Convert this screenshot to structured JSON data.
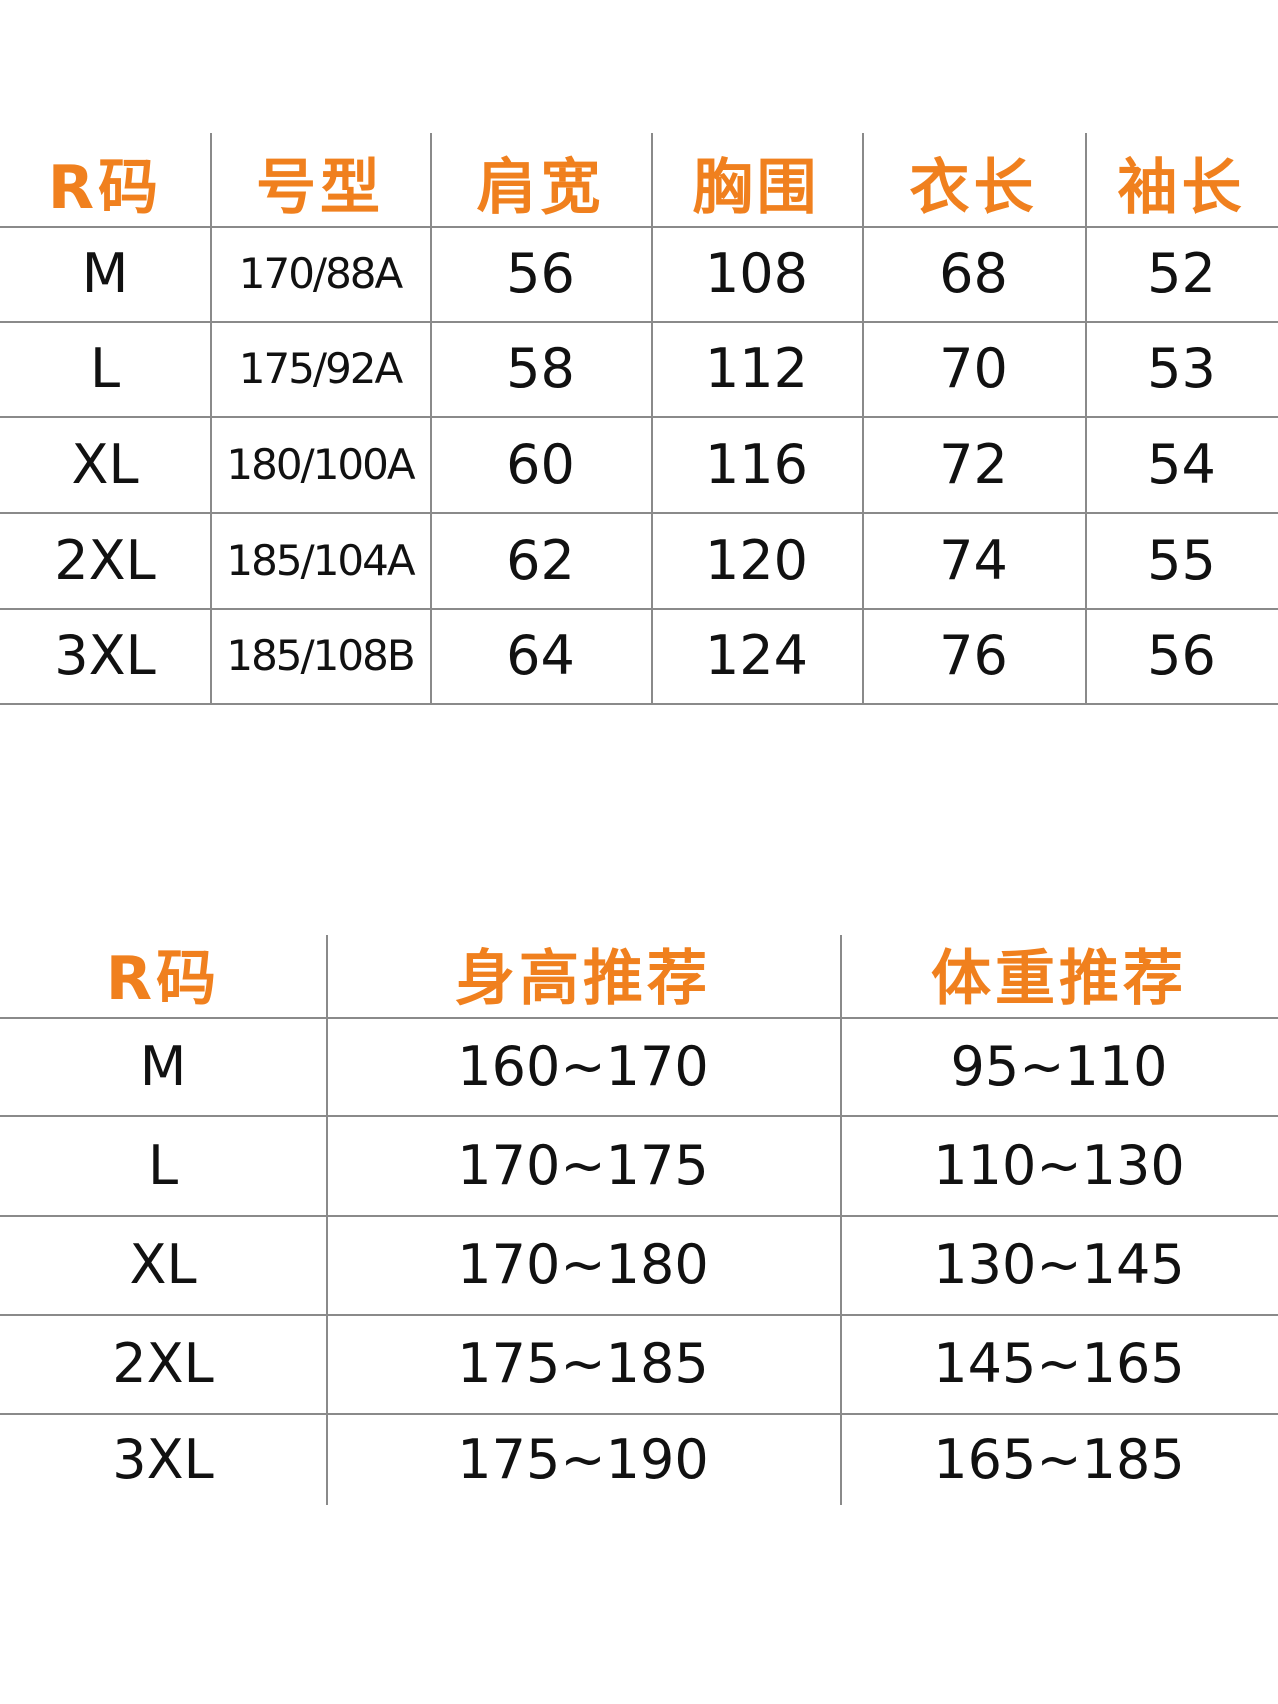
{
  "accent_color": "#f0801e",
  "size_table": {
    "headers": [
      "R码",
      "号型",
      "肩宽",
      "胸围",
      "衣长",
      "袖长"
    ],
    "rows": [
      [
        "M",
        "170/88A",
        "56",
        "108",
        "68",
        "52"
      ],
      [
        "L",
        "175/92A",
        "58",
        "112",
        "70",
        "53"
      ],
      [
        "XL",
        "180/100A",
        "60",
        "116",
        "72",
        "54"
      ],
      [
        "2XL",
        "185/104A",
        "62",
        "120",
        "74",
        "55"
      ],
      [
        "3XL",
        "185/108B",
        "64",
        "124",
        "76",
        "56"
      ]
    ]
  },
  "recommend_table": {
    "headers": [
      "R码",
      "身高推荐",
      "体重推荐"
    ],
    "rows": [
      [
        "M",
        "160~170",
        "95~110"
      ],
      [
        "L",
        "170~175",
        "110~130"
      ],
      [
        "XL",
        "170~180",
        "130~145"
      ],
      [
        "2XL",
        "175~185",
        "145~165"
      ],
      [
        "3XL",
        "175~190",
        "165~185"
      ]
    ]
  }
}
